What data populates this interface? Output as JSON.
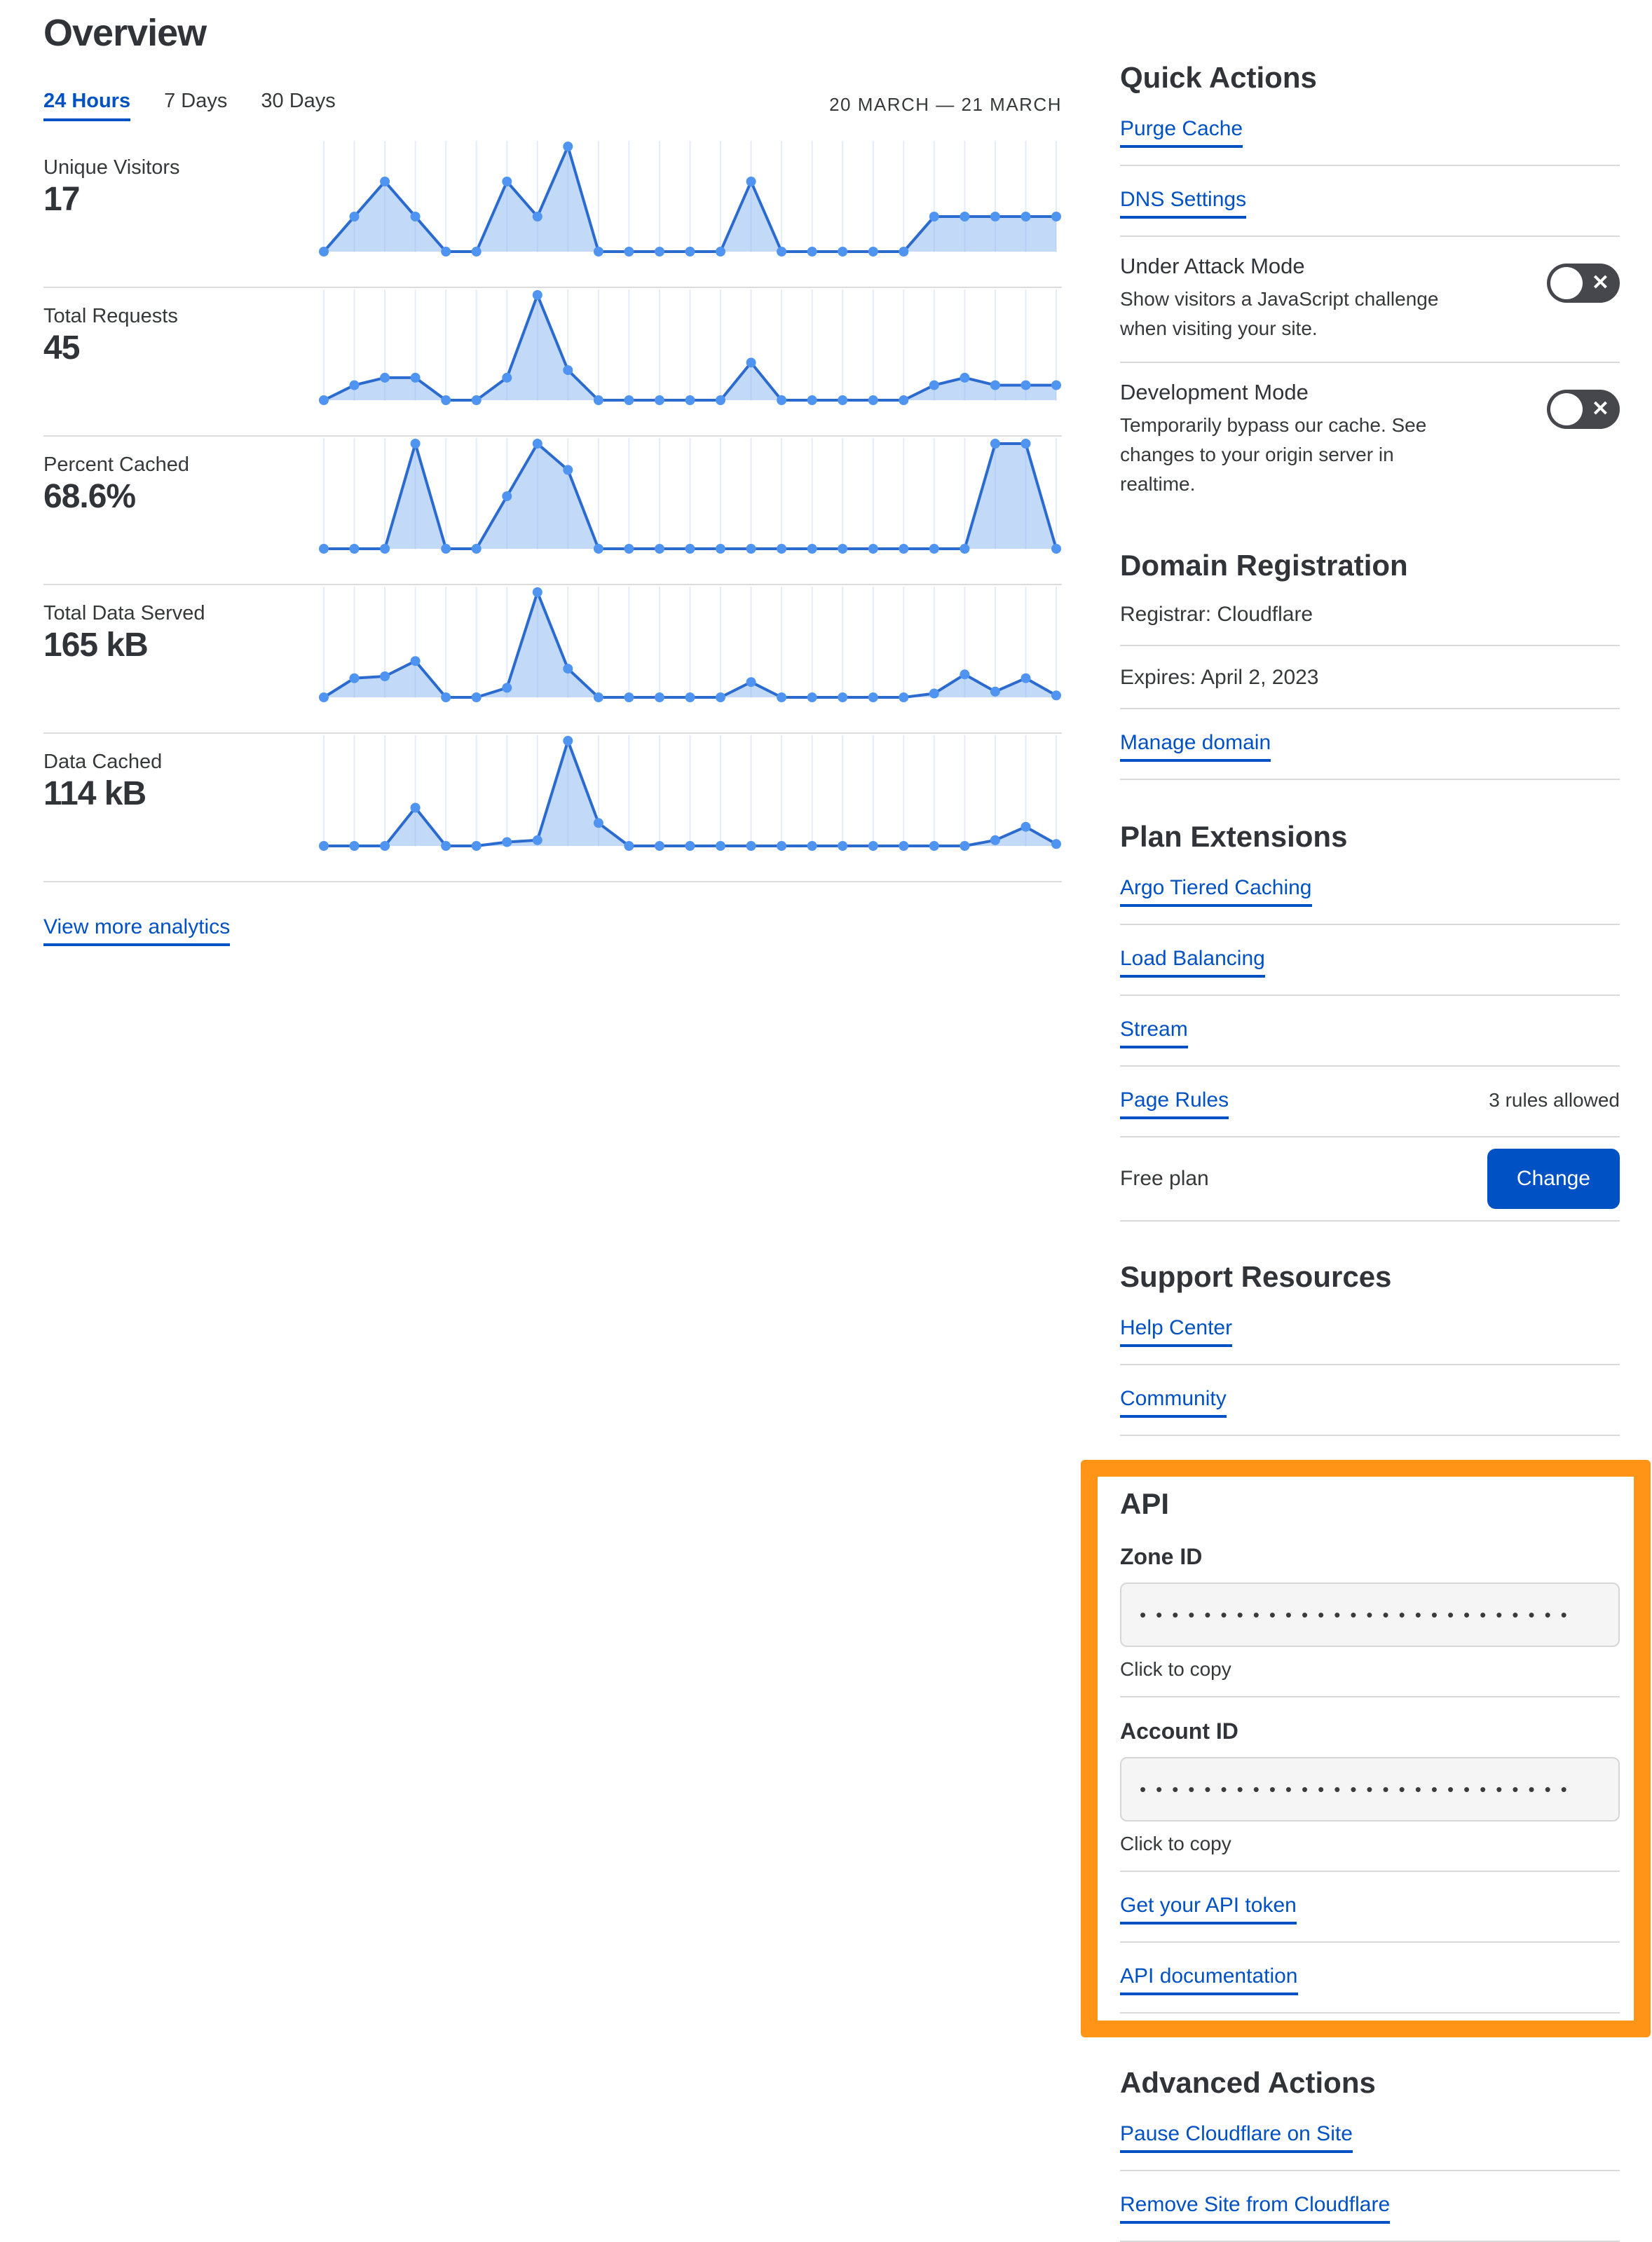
{
  "colors": {
    "accent_blue": "#0051c3",
    "highlight_orange": "#ff9416",
    "chart_line": "#2b6bd0",
    "chart_fill": "rgba(144,186,242,0.55)",
    "chart_dot": "#4f94f1",
    "chart_grid": "#e4ecfa",
    "toggle_bg": "#46474c"
  },
  "header": {
    "title": "Overview",
    "tabs": [
      {
        "label": "24 Hours",
        "active": true
      },
      {
        "label": "7 Days",
        "active": false
      },
      {
        "label": "30 Days",
        "active": false
      }
    ],
    "date_range": "20 MARCH — 21 MARCH",
    "view_more": "View more analytics"
  },
  "chart_data": [
    {
      "type": "area",
      "title": "Unique Visitors",
      "value": "17",
      "ylim": [
        0,
        3
      ],
      "values": [
        0,
        1,
        2,
        1,
        0,
        0,
        2,
        1,
        3,
        0,
        0,
        0,
        0,
        0,
        2,
        0,
        0,
        0,
        0,
        0,
        1,
        1,
        1,
        1,
        1
      ]
    },
    {
      "type": "area",
      "title": "Total Requests",
      "value": "45",
      "ylim": [
        0,
        14
      ],
      "values": [
        0,
        2,
        3,
        3,
        0,
        0,
        3,
        14,
        4,
        0,
        0,
        0,
        0,
        0,
        5,
        0,
        0,
        0,
        0,
        0,
        2,
        3,
        2,
        2,
        2
      ]
    },
    {
      "type": "area",
      "title": "Percent Cached",
      "value": "68.6%",
      "ylim": [
        0,
        100
      ],
      "values": [
        0,
        0,
        0,
        100,
        0,
        0,
        50,
        100,
        75,
        0,
        0,
        0,
        0,
        0,
        0,
        0,
        0,
        0,
        0,
        0,
        0,
        0,
        100,
        100,
        0
      ]
    },
    {
      "type": "area",
      "title": "Total Data Served",
      "value": "165 kB",
      "ylim": [
        0,
        55
      ],
      "values": [
        0,
        10,
        11,
        19,
        0,
        0,
        5,
        55,
        15,
        0,
        0,
        0,
        0,
        0,
        8,
        0,
        0,
        0,
        0,
        0,
        2,
        12,
        3,
        10,
        1
      ]
    },
    {
      "type": "area",
      "title": "Data Cached",
      "value": "114 kB",
      "ylim": [
        0,
        55
      ],
      "values": [
        0,
        0,
        0,
        20,
        0,
        0,
        2,
        3,
        55,
        12,
        0,
        0,
        0,
        0,
        0,
        0,
        0,
        0,
        0,
        0,
        0,
        0,
        3,
        10,
        1
      ]
    }
  ],
  "sidebar": {
    "quick_actions": {
      "title": "Quick Actions",
      "links": [
        {
          "label": "Purge Cache"
        },
        {
          "label": "DNS Settings"
        }
      ],
      "toggles": [
        {
          "label": "Under Attack Mode",
          "description": "Show visitors a JavaScript challenge when visiting your site.",
          "state": "off"
        },
        {
          "label": "Development Mode",
          "description": "Temporarily bypass our cache. See changes to your origin server in realtime.",
          "state": "off"
        }
      ]
    },
    "domain_registration": {
      "title": "Domain Registration",
      "rows": [
        "Registrar: Cloudflare",
        "Expires: April 2, 2023"
      ],
      "links": [
        {
          "label": "Manage domain"
        }
      ]
    },
    "plan_extensions": {
      "title": "Plan Extensions",
      "links": [
        {
          "label": "Argo Tiered Caching"
        },
        {
          "label": "Load Balancing"
        },
        {
          "label": "Stream"
        },
        {
          "label": "Page Rules",
          "note": "3 rules allowed"
        }
      ],
      "plan_label": "Free plan",
      "change_button": "Change"
    },
    "support_resources": {
      "title": "Support Resources",
      "links": [
        {
          "label": "Help Center"
        },
        {
          "label": "Community"
        }
      ]
    },
    "api": {
      "title": "API",
      "zone_id_label": "Zone ID",
      "account_id_label": "Account ID",
      "masked_value": "•••••••••••••••••••••••••••",
      "click_to_copy": "Click to copy",
      "links": [
        {
          "label": "Get your API token"
        },
        {
          "label": "API documentation"
        }
      ]
    },
    "advanced_actions": {
      "title": "Advanced Actions",
      "links": [
        {
          "label": "Pause Cloudflare on Site"
        },
        {
          "label": "Remove Site from Cloudflare"
        }
      ]
    },
    "toggle_x_glyph": "✕"
  }
}
